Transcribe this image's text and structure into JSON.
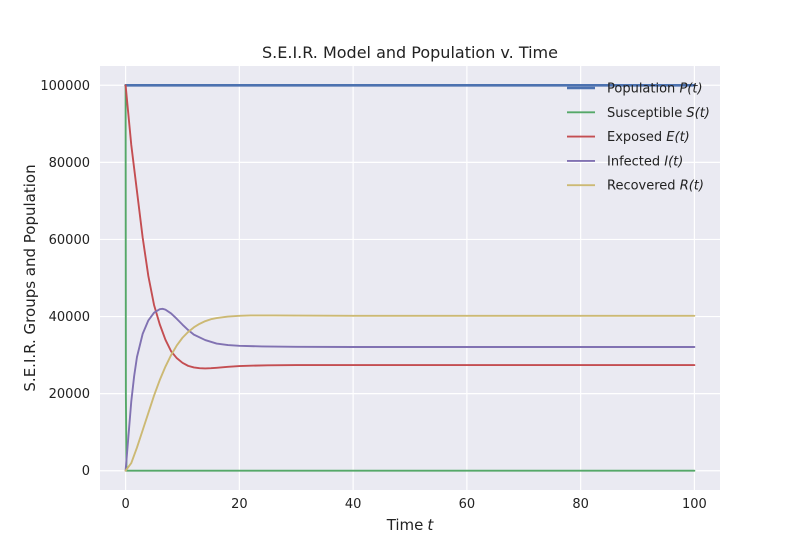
{
  "chart_data": {
    "type": "line",
    "title": "S.E.I.R. Model and Population v. Time",
    "xlabel": "Time",
    "xlabel_var": "t",
    "ylabel": "S.E.I.R. Groups and Population",
    "xlim": [
      -4.5,
      104.5
    ],
    "ylim": [
      -5000,
      105000
    ],
    "xticks": [
      0,
      20,
      40,
      60,
      80,
      100
    ],
    "yticks": [
      0,
      20000,
      40000,
      60000,
      80000,
      100000
    ],
    "xtick_labels": [
      "0",
      "20",
      "40",
      "60",
      "80",
      "100"
    ],
    "ytick_labels": [
      "0",
      "20000",
      "40000",
      "60000",
      "80000",
      "100000"
    ],
    "grid": true,
    "background": "#eaeaf2",
    "legend_position": "top-right",
    "series": [
      {
        "name": "Population",
        "var": "P(t)",
        "color": "#4c72b0",
        "x": [
          0,
          100
        ],
        "y": [
          100000,
          100000
        ]
      },
      {
        "name": "Susceptible",
        "var": "S(t)",
        "color": "#55a868",
        "x": [
          0,
          0.05,
          0.15,
          1,
          100
        ],
        "y": [
          100000,
          20000,
          0,
          0,
          0
        ]
      },
      {
        "name": "Exposed",
        "var": "E(t)",
        "color": "#c44e52",
        "x": [
          0,
          1,
          2,
          3,
          4,
          5,
          6,
          7,
          8,
          9,
          10,
          11,
          12,
          13,
          14,
          15,
          16,
          18,
          20,
          22,
          25,
          30,
          40,
          60,
          80,
          100
        ],
        "y": [
          100000,
          84500,
          72500,
          60500,
          50500,
          43000,
          38000,
          34000,
          31000,
          29200,
          28000,
          27200,
          26800,
          26600,
          26550,
          26600,
          26700,
          26950,
          27150,
          27250,
          27350,
          27400,
          27400,
          27400,
          27400,
          27400
        ]
      },
      {
        "name": "Infected",
        "var": "I(t)",
        "color": "#8172b2",
        "x": [
          0,
          0.5,
          1,
          1.5,
          2,
          3,
          4,
          5,
          6,
          6.5,
          7,
          8,
          9,
          10,
          11,
          12,
          14,
          16,
          18,
          20,
          24,
          30,
          40,
          60,
          80,
          100
        ],
        "y": [
          0,
          9000,
          18000,
          24500,
          29500,
          35500,
          39000,
          41000,
          41900,
          42000,
          41800,
          40800,
          39400,
          37900,
          36500,
          35300,
          33900,
          33000,
          32600,
          32400,
          32250,
          32150,
          32100,
          32100,
          32100,
          32100
        ]
      },
      {
        "name": "Recovered",
        "var": "R(t)",
        "color": "#ccb974",
        "x": [
          0,
          1,
          2,
          3,
          4,
          5,
          6,
          7,
          8,
          9,
          10,
          11,
          12,
          13,
          14,
          15,
          16,
          18,
          20,
          22,
          24,
          26,
          30,
          40,
          60,
          80,
          100
        ],
        "y": [
          0,
          2000,
          6000,
          10500,
          15000,
          19500,
          23500,
          27000,
          30000,
          32500,
          34500,
          36000,
          37200,
          38100,
          38800,
          39300,
          39600,
          40000,
          40200,
          40300,
          40300,
          40300,
          40250,
          40200,
          40200,
          40200,
          40200
        ]
      }
    ]
  }
}
